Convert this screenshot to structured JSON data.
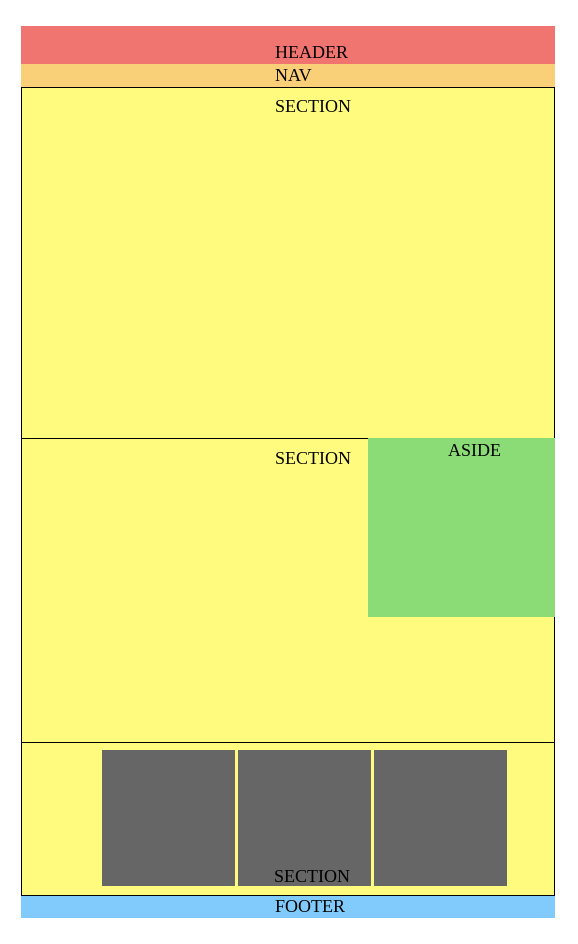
{
  "header": {
    "label": "HEADER"
  },
  "nav": {
    "label": "NAV"
  },
  "sections": [
    {
      "label": "SECTION"
    },
    {
      "label": "SECTION"
    },
    {
      "label": "SECTION"
    }
  ],
  "aside": {
    "label": "ASIDE"
  },
  "footer": {
    "label": "FOOTER"
  },
  "colors": {
    "header": "#f07470",
    "nav": "#f9cf78",
    "section": "#fffb7f",
    "aside": "#8bdb77",
    "tile": "#666666",
    "footer": "#80cbfb"
  }
}
